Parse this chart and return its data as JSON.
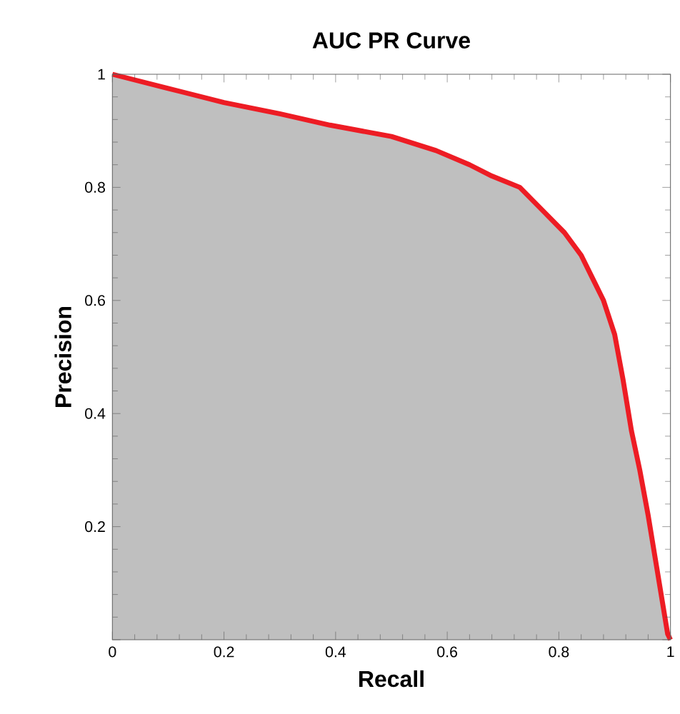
{
  "chart_data": {
    "type": "area",
    "title": "AUC PR Curve",
    "xlabel": "Recall",
    "ylabel": "Precision",
    "xlim": [
      0,
      1
    ],
    "ylim": [
      0,
      1
    ],
    "xticks": [
      0,
      0.2,
      0.4,
      0.6,
      0.8,
      1
    ],
    "yticks": [
      {
        "value": 0,
        "label": null
      },
      0.2,
      0.4,
      0.6,
      0.8,
      1
    ],
    "series": [
      {
        "color": "#ed1c24",
        "x": [
          0,
          0.1,
          0.2,
          0.3,
          0.39,
          0.5,
          0.58,
          0.64,
          0.68,
          0.73,
          0.77,
          0.81,
          0.84,
          0.86,
          0.88,
          0.9,
          0.915,
          0.93,
          0.945,
          0.96,
          0.975,
          0.995,
          1
        ],
        "values": [
          1,
          0.975,
          0.95,
          0.93,
          0.91,
          0.89,
          0.865,
          0.84,
          0.82,
          0.8,
          0.76,
          0.72,
          0.68,
          0.64,
          0.6,
          0.54,
          0.46,
          0.37,
          0.3,
          0.22,
          0.13,
          0.01,
          0
        ]
      }
    ]
  }
}
